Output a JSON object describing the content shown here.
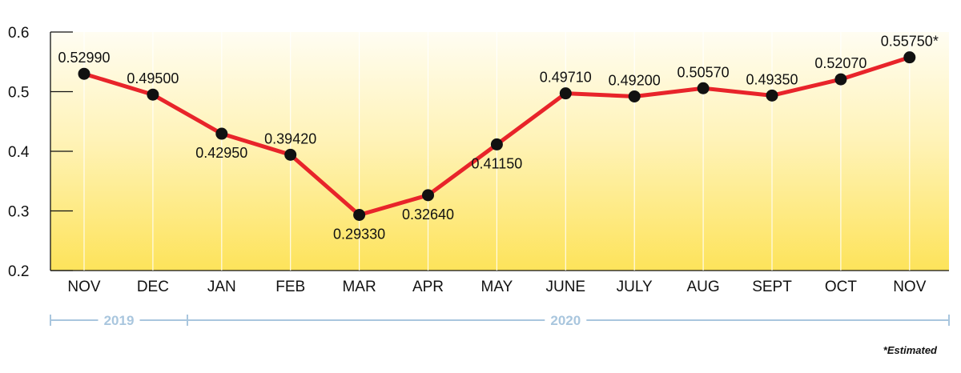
{
  "chart_data": {
    "type": "line",
    "categories": [
      "NOV",
      "DEC",
      "JAN",
      "FEB",
      "MAR",
      "APR",
      "MAY",
      "JUNE",
      "JULY",
      "AUG",
      "SEPT",
      "OCT",
      "NOV"
    ],
    "values": [
      0.5299,
      0.495,
      0.4295,
      0.3942,
      0.2933,
      0.3264,
      0.4115,
      0.4971,
      0.492,
      0.5057,
      0.4935,
      0.5207,
      0.5575
    ],
    "data_labels": [
      "0.52990",
      "0.49500",
      "0.42950",
      "0.39420",
      "0.29330",
      "0.32640",
      "0.41150",
      "0.49710",
      "0.49200",
      "0.50570",
      "0.49350",
      "0.52070",
      "0.55750*"
    ],
    "label_position": [
      "above",
      "above",
      "below",
      "above",
      "below",
      "below",
      "below",
      "above",
      "above",
      "above",
      "above",
      "above",
      "above"
    ],
    "ylim": [
      0.2,
      0.6
    ],
    "yticks": [
      "0.2",
      "0.3",
      "0.4",
      "0.5",
      "0.6"
    ],
    "ytick_values": [
      0.2,
      0.3,
      0.4,
      0.5,
      0.6
    ],
    "year_groups": [
      {
        "label": "2019",
        "from": 0,
        "to": 1
      },
      {
        "label": "2020",
        "from": 2,
        "to": 12
      }
    ],
    "footnote": "*Estimated",
    "grid": false,
    "colors": {
      "line": "#e8242a",
      "marker": "#111111",
      "background_top": "#fffdf2",
      "background_bottom": "#fde35a",
      "year_bracket": "#a9c6de"
    }
  }
}
